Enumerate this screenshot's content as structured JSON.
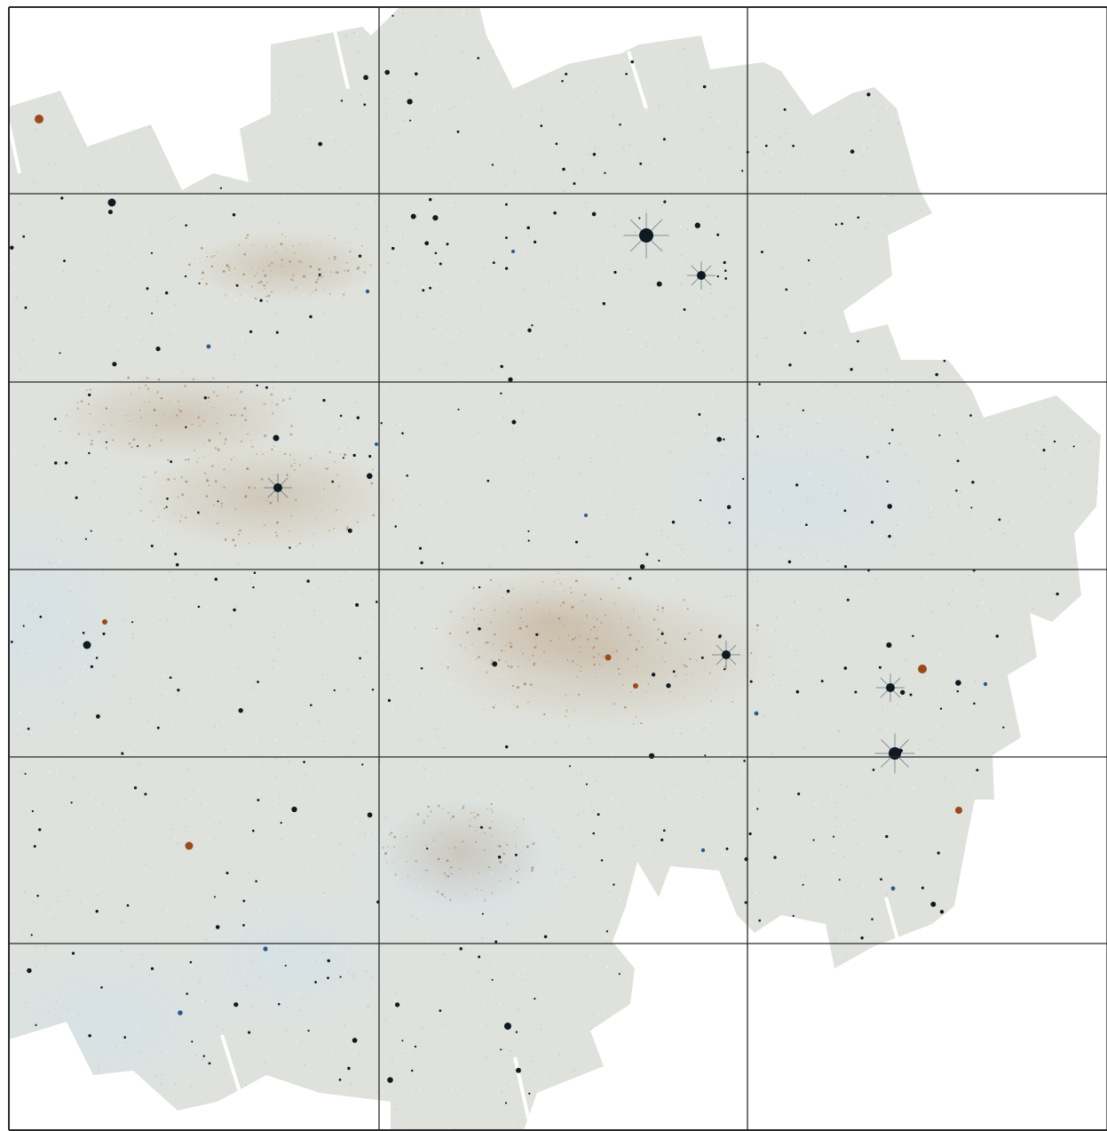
{
  "image": {
    "subject": "astronomical-mosaic-survey-field",
    "grid": {
      "columns": 3,
      "rows": 6
    },
    "palette": {
      "background": "#ffffff",
      "mosaic_fill": "#dfe2dc",
      "mosaic_tint": "#d8dfe4",
      "grid_line": "#2a2a2a",
      "star_dark": "#0f1a22",
      "star_blue": "#2c5a8c",
      "star_orange": "#9a4a1c",
      "dust_brown": "#a9835c",
      "chip_gap": "#ffffff"
    }
  }
}
